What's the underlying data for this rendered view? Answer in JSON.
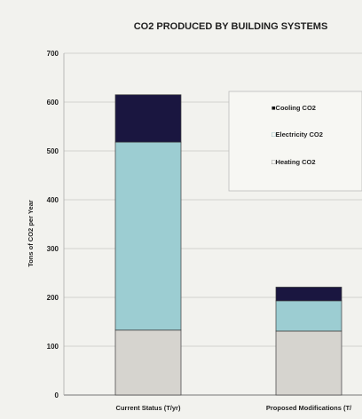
{
  "chart_data": {
    "type": "bar",
    "stacked": true,
    "title": "CO2 PRODUCED BY BUILDING SYSTEMS",
    "xlabel": "",
    "ylabel": "Tons of CO2 per Year",
    "ylim": [
      0,
      700
    ],
    "yticks": [
      "0",
      "100",
      "200",
      "300",
      "400",
      "500",
      "600",
      "700"
    ],
    "categories": [
      "Current Status (T/yr)",
      "Proposed Modifications (T/"
    ],
    "series": [
      {
        "name": "Heating CO2",
        "values": [
          133,
          131
        ],
        "color": "#d6d4cf"
      },
      {
        "name": "Electricity CO2",
        "values": [
          385,
          62
        ],
        "color": "#9ccdd2"
      },
      {
        "name": "Cooling CO2",
        "values": [
          97,
          28
        ],
        "color": "#1a1640"
      }
    ],
    "legend_order": [
      "Cooling CO2",
      "Electricity CO2",
      "Heating CO2"
    ],
    "legend_markers": [
      "■",
      "□",
      "□"
    ],
    "legend_position": "top-right",
    "grid": true
  }
}
